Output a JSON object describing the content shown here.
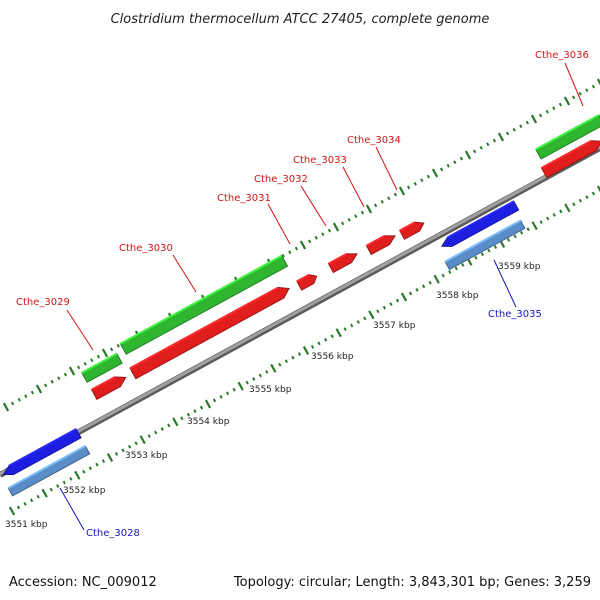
{
  "title": "Clostridium thermocellum ATCC 27405, complete genome",
  "accession": "Accession: NC_009012",
  "summary": "Topology: circular; Length: 3,843,301 bp; Genes: 3,259",
  "colors": {
    "backbone": "#8c8c8c",
    "forward_cds": "#e01e1e",
    "reverse_cds": "#1e1ee0",
    "forward_gene": "#2fb52f",
    "reverse_gene": "#5a8cc8",
    "forward_label": "#d01515",
    "reverse_label": "#1515c0",
    "ticks": "#2a7a2a"
  },
  "tick_labels": [
    "3551 kbp",
    "3552 kbp",
    "3553 kbp",
    "3554 kbp",
    "3555 kbp",
    "3556 kbp",
    "3557 kbp",
    "3558 kbp",
    "3559 kbp"
  ],
  "genes": [
    {
      "label": "Cthe_3028",
      "strand": "reverse"
    },
    {
      "label": "Cthe_3029",
      "strand": "forward"
    },
    {
      "label": "Cthe_3030",
      "strand": "forward"
    },
    {
      "label": "Cthe_3031",
      "strand": "forward"
    },
    {
      "label": "Cthe_3032",
      "strand": "forward"
    },
    {
      "label": "Cthe_3033",
      "strand": "forward"
    },
    {
      "label": "Cthe_3034",
      "strand": "forward"
    },
    {
      "label": "Cthe_3035",
      "strand": "reverse"
    },
    {
      "label": "Cthe_3036",
      "strand": "forward"
    }
  ]
}
